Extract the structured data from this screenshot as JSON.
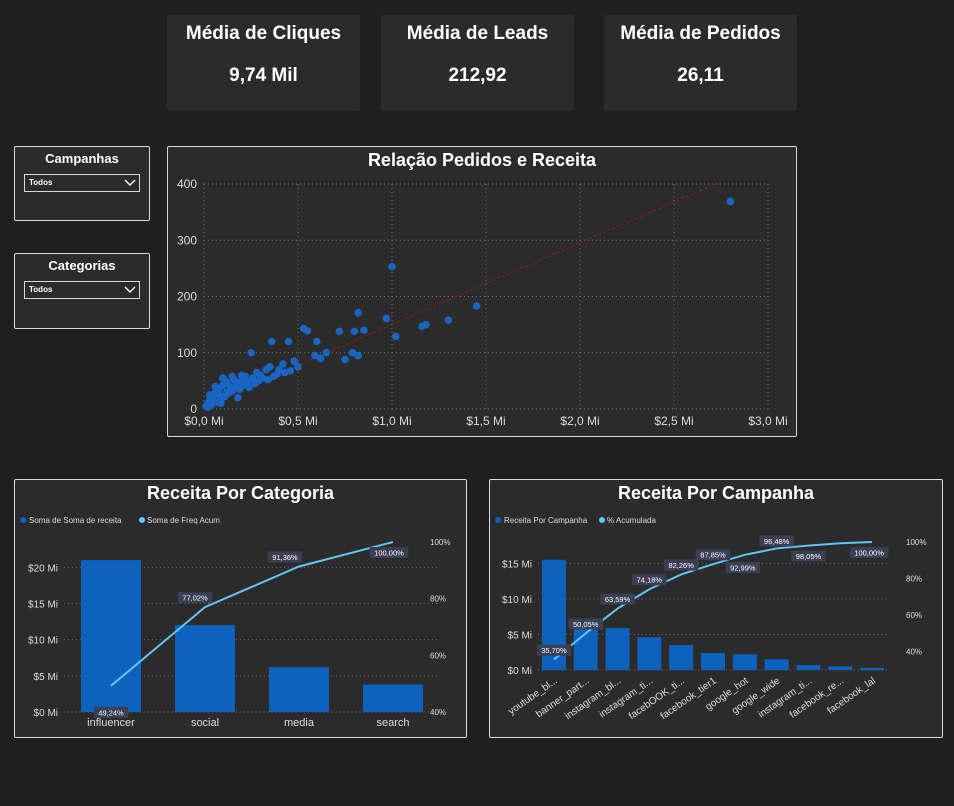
{
  "kpis": [
    {
      "title": "Média de Cliques",
      "value": "9,74 Mil"
    },
    {
      "title": "Média de Leads",
      "value": "212,92"
    },
    {
      "title": "Média de Pedidos",
      "value": "26,11"
    }
  ],
  "slicers": {
    "campanhas": {
      "title": "Campanhas",
      "selected": "Todos"
    },
    "categorias": {
      "title": "Categorias",
      "selected": "Todos"
    }
  },
  "colors": {
    "background": "#1f1f1f",
    "panel": "#2b2b2b",
    "bar": "#0d62bd",
    "scatter": "#1a64c2",
    "trend": "#8b1a1a",
    "line": "#63c5f3",
    "label_bg": "#3a3f55"
  },
  "chart_data": [
    {
      "id": "scatter",
      "type": "scatter",
      "title": "Relação Pedidos e Receita",
      "xlabel": "",
      "ylabel": "",
      "xlim": [
        0,
        3.0
      ],
      "ylim": [
        0,
        400
      ],
      "x_ticks": [
        "$0,0 Mi",
        "$0,5 Mi",
        "$1,0 Mi",
        "$1,5 Mi",
        "$2,0 Mi",
        "$2,5 Mi",
        "$3,0 Mi"
      ],
      "y_ticks": [
        "0",
        "100",
        "200",
        "300",
        "400"
      ],
      "trendline": [
        [
          0,
          5
        ],
        [
          2.72,
          400
        ]
      ],
      "points": [
        [
          2.8,
          369
        ],
        [
          1.0,
          253
        ],
        [
          1.45,
          183
        ],
        [
          1.3,
          158
        ],
        [
          1.18,
          150
        ],
        [
          1.16,
          147
        ],
        [
          1.02,
          129
        ],
        [
          0.97,
          161
        ],
        [
          0.82,
          171
        ],
        [
          0.8,
          138
        ],
        [
          0.85,
          140
        ],
        [
          0.72,
          138
        ],
        [
          0.75,
          88
        ],
        [
          0.79,
          100
        ],
        [
          0.82,
          95
        ],
        [
          0.65,
          100
        ],
        [
          0.6,
          120
        ],
        [
          0.55,
          139
        ],
        [
          0.53,
          143
        ],
        [
          0.45,
          120
        ],
        [
          0.36,
          120
        ],
        [
          0.59,
          95
        ],
        [
          0.62,
          90
        ],
        [
          0.25,
          100
        ],
        [
          0.48,
          85
        ],
        [
          0.5,
          75
        ],
        [
          0.4,
          70
        ],
        [
          0.42,
          80
        ],
        [
          0.35,
          75
        ],
        [
          0.33,
          70
        ],
        [
          0.3,
          60
        ],
        [
          0.28,
          65
        ],
        [
          0.26,
          55
        ],
        [
          0.22,
          58
        ],
        [
          0.2,
          50
        ],
        [
          0.18,
          45
        ],
        [
          0.16,
          52
        ],
        [
          0.14,
          40
        ],
        [
          0.12,
          48
        ],
        [
          0.1,
          42
        ],
        [
          0.08,
          35
        ],
        [
          0.06,
          30
        ],
        [
          0.05,
          25
        ],
        [
          0.04,
          20
        ],
        [
          0.03,
          15
        ],
        [
          0.02,
          10
        ],
        [
          0.01,
          5
        ],
        [
          0.02,
          3
        ],
        [
          0.04,
          8
        ],
        [
          0.07,
          12
        ],
        [
          0.09,
          18
        ],
        [
          0.11,
          22
        ],
        [
          0.13,
          28
        ],
        [
          0.15,
          32
        ],
        [
          0.17,
          38
        ],
        [
          0.19,
          35
        ],
        [
          0.21,
          42
        ],
        [
          0.23,
          48
        ],
        [
          0.24,
          38
        ],
        [
          0.27,
          45
        ],
        [
          0.29,
          50
        ],
        [
          0.31,
          55
        ],
        [
          0.34,
          52
        ],
        [
          0.37,
          58
        ],
        [
          0.39,
          62
        ],
        [
          0.43,
          65
        ],
        [
          0.46,
          68
        ],
        [
          0.2,
          60
        ],
        [
          0.15,
          58
        ],
        [
          0.1,
          55
        ],
        [
          0.12,
          30
        ],
        [
          0.08,
          25
        ],
        [
          0.05,
          15
        ],
        [
          0.03,
          25
        ],
        [
          0.06,
          40
        ],
        [
          0.09,
          10
        ],
        [
          0.18,
          20
        ]
      ]
    },
    {
      "id": "categoria",
      "type": "bar",
      "title": "Receita Por Categoria",
      "legend": [
        "Soma de Soma de receita",
        "Soma de Freq Acum"
      ],
      "categories": [
        "influencer",
        "social",
        "media",
        "search"
      ],
      "series": [
        {
          "name": "Soma de Soma de receita",
          "values": [
            21.0,
            12.0,
            6.2,
            3.8
          ]
        },
        {
          "name": "Soma de Freq Acum",
          "values": [
            49.24,
            77.02,
            91.36,
            100.0
          ]
        }
      ],
      "line_labels": [
        "49,24%",
        "77,02%",
        "91,36%",
        "100,00%"
      ],
      "ylim": [
        0,
        23.5
      ],
      "y2lim": [
        40,
        100
      ],
      "y_ticks": [
        "$0 Mi",
        "$5 Mi",
        "$10 Mi",
        "$15 Mi",
        "$20 Mi"
      ],
      "y2_ticks": [
        "40%",
        "60%",
        "80%",
        "100%"
      ]
    },
    {
      "id": "campanha",
      "type": "bar",
      "title": "Receita Por Campanha",
      "legend": [
        "Receita Por Campanha",
        "% Acumulada"
      ],
      "categories": [
        "youtube_bl...",
        "banner_part...",
        "instagram_bl...",
        "instagram_ti...",
        "facebOOK_ti...",
        "facebook_tier1",
        "google_hot",
        "google_wide",
        "instagram_ti...",
        "facebook_re...",
        "facebook_lal"
      ],
      "series": [
        {
          "name": "Receita Por Campanha",
          "values": [
            15.5,
            6.3,
            5.9,
            4.6,
            3.5,
            2.4,
            2.2,
            1.5,
            0.7,
            0.5,
            0.3
          ]
        },
        {
          "name": "% Acumulada",
          "values": [
            35.7,
            50.05,
            63.59,
            74.18,
            82.26,
            87.85,
            92.99,
            96.48,
            98.05,
            99.3,
            100.0
          ]
        }
      ],
      "line_labels": [
        "35,70%",
        "50,05%",
        "63,59%",
        "74,18%",
        "82,26%",
        "87,85%",
        "92,99%",
        "96,48%",
        "98,05%",
        "",
        "100,00%"
      ],
      "ylim": [
        0,
        18
      ],
      "y2lim": [
        30,
        100
      ],
      "y_ticks": [
        "$0 Mi",
        "$5 Mi",
        "$10 Mi",
        "$15 Mi"
      ],
      "y2_ticks": [
        "40%",
        "60%",
        "80%",
        "100%"
      ]
    }
  ]
}
